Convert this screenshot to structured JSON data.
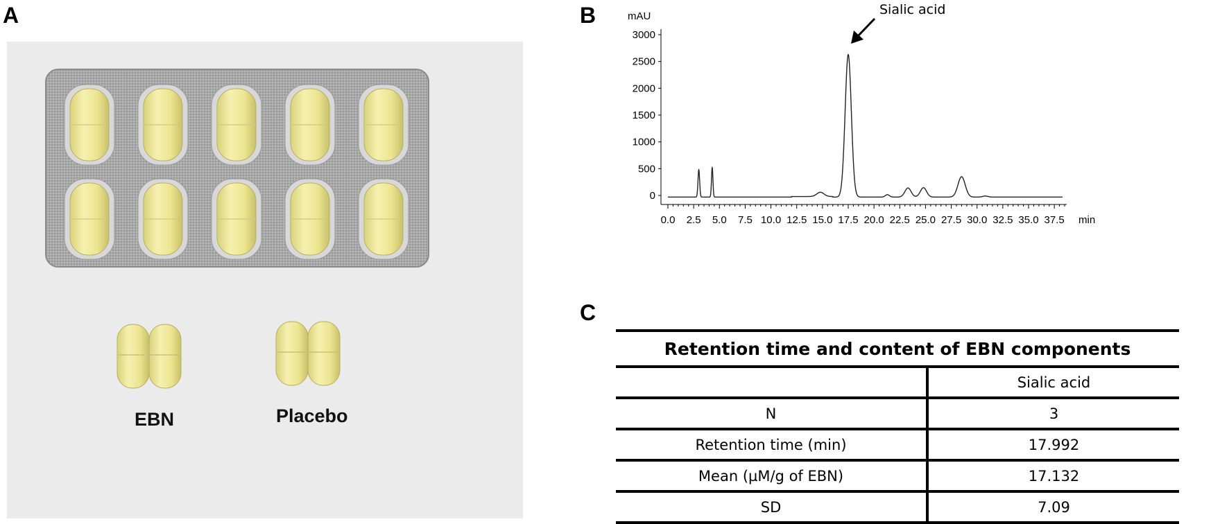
{
  "panels": {
    "a": "A",
    "b": "B",
    "c": "C"
  },
  "photo": {
    "label_left": "EBN",
    "label_right": "Placebo"
  },
  "chart_data": {
    "type": "line",
    "ylabel": "mAU",
    "xlabel": "min",
    "xlim": [
      0,
      38.5
    ],
    "ylim": [
      0,
      3000
    ],
    "xticks": [
      0.0,
      2.5,
      5.0,
      7.5,
      10.0,
      12.5,
      15.0,
      17.5,
      20.0,
      22.5,
      25.0,
      27.5,
      30.0,
      32.5,
      35.0,
      37.5
    ],
    "xtick_labels": [
      "0.0",
      "2.5",
      "5.0",
      "7.5",
      "10.0",
      "12.5",
      "15.0",
      "17.5",
      "20.0",
      "22.5",
      "25.0",
      "27.5",
      "30.0",
      "32.5",
      "35.0",
      "37.5"
    ],
    "yticks": [
      0,
      500,
      1000,
      1500,
      2000,
      2500,
      3000
    ],
    "ytick_labels": [
      "0",
      "500",
      "1000",
      "1500",
      "2000",
      "2500",
      "3000"
    ],
    "baseline": -30,
    "peaks": [
      {
        "rt": 3.0,
        "height": 510,
        "width": 0.08
      },
      {
        "rt": 4.3,
        "height": 550,
        "width": 0.07
      },
      {
        "rt": 14.8,
        "height": 80,
        "width": 0.35
      },
      {
        "rt": 17.5,
        "height": 2660,
        "width": 0.3
      },
      {
        "rt": 21.3,
        "height": 45,
        "width": 0.2
      },
      {
        "rt": 23.3,
        "height": 170,
        "width": 0.3
      },
      {
        "rt": 24.8,
        "height": 175,
        "width": 0.3
      },
      {
        "rt": 28.5,
        "height": 380,
        "width": 0.35
      },
      {
        "rt": 30.8,
        "height": 20,
        "width": 0.25
      }
    ],
    "annotation": {
      "text": "Sialic acid",
      "x": 17.5
    },
    "grid": false
  },
  "table": {
    "title": "Retention time and content of EBN components",
    "header": [
      "",
      "Sialic acid"
    ],
    "rows": [
      [
        "N",
        "3"
      ],
      [
        "Retention time (min)",
        "17.992"
      ],
      [
        "Mean (µM/g of EBN)",
        "17.132"
      ],
      [
        "SD",
        "7.09"
      ]
    ]
  }
}
